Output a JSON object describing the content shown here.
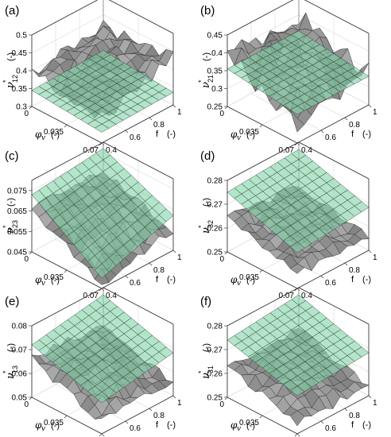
{
  "chart_data": [
    {
      "panel_label": "(a)",
      "type": "surface",
      "xlabel": {
        "var": "φ",
        "sub": "v",
        "unit": "(-)"
      },
      "ylabel": {
        "var": "f",
        "unit": "(-)"
      },
      "zlabel": {
        "var": "ν",
        "sup": "*",
        "sub": "12",
        "unit": "(-)"
      },
      "x_ticks": [
        "0",
        "0.035",
        "0.07"
      ],
      "y_ticks": [
        "0.4",
        "0.6",
        "0.8",
        "1"
      ],
      "z_ticks": [
        "0.3",
        "0.35",
        "0.4",
        "0.45",
        "0.5"
      ],
      "xlim": [
        0,
        0.07
      ],
      "ylim": [
        0.4,
        1
      ],
      "zlim": [
        0.3,
        0.5
      ],
      "series": [
        {
          "name": "",
          "kind": "gray-rough",
          "color": "#a0a0a0",
          "corners": {
            "x0y0": 0.395,
            "x0y1": 0.42,
            "x1y0": 0.37,
            "x1y1": 0.43
          },
          "center_bump": 0.02,
          "noise": 0.02,
          "seed": 11
        },
        {
          "name": "",
          "kind": "green-plane",
          "color": "#7fd4a6",
          "corners": {
            "x0y0": 0.345,
            "x0y1": 0.35,
            "x1y0": 0.33,
            "x1y1": 0.335
          },
          "center_bump": 0,
          "noise": 0,
          "seed": 0
        }
      ],
      "grid": true
    },
    {
      "panel_label": "(b)",
      "type": "surface",
      "xlabel": {
        "var": "φ",
        "sub": "v",
        "unit": "(-)"
      },
      "ylabel": {
        "var": "f",
        "unit": "(-)"
      },
      "zlabel": {
        "var": "ν",
        "sup": "*",
        "sub": "21",
        "unit": "(-)"
      },
      "x_ticks": [
        "0",
        "0.035",
        "0.07"
      ],
      "y_ticks": [
        "0.4",
        "0.6",
        "0.8",
        "1"
      ],
      "z_ticks": [
        "0.25",
        "0.3",
        "0.35",
        "0.4",
        "0.45"
      ],
      "xlim": [
        0,
        0.07
      ],
      "ylim": [
        0.4,
        1
      ],
      "zlim": [
        0.25,
        0.45
      ],
      "series": [
        {
          "name": "",
          "kind": "gray-rough",
          "color": "#a0a0a0",
          "corners": {
            "x0y0": 0.39,
            "x0y1": 0.4,
            "x1y0": 0.3,
            "x1y1": 0.34
          },
          "center_bump": 0.04,
          "noise": 0.03,
          "seed": 23
        },
        {
          "name": "",
          "kind": "green-plane",
          "color": "#7fd4a6",
          "corners": {
            "x0y0": 0.355,
            "x0y1": 0.355,
            "x1y0": 0.33,
            "x1y1": 0.33
          },
          "center_bump": 0,
          "noise": 0,
          "seed": 0
        }
      ],
      "grid": true
    },
    {
      "panel_label": "(c)",
      "type": "surface",
      "xlabel": {
        "var": "φ",
        "sub": "v",
        "unit": "(-)"
      },
      "ylabel": {
        "var": "f",
        "unit": "(-)"
      },
      "zlabel": {
        "var": "ν",
        "sup": "*",
        "sub": "23",
        "unit": "(-)"
      },
      "x_ticks": [
        "0",
        "0.035",
        "0.07"
      ],
      "y_ticks": [
        "0.4",
        "0.6",
        "0.8",
        "1"
      ],
      "z_ticks": [
        "0.045",
        "0.055",
        "0.065",
        "0.075"
      ],
      "xlim": [
        0,
        0.07
      ],
      "ylim": [
        0.4,
        1
      ],
      "zlim": [
        0.045,
        0.08
      ],
      "series": [
        {
          "name": "",
          "kind": "gray-rough",
          "color": "#a0a0a0",
          "corners": {
            "x0y0": 0.066,
            "x0y1": 0.066,
            "x1y0": 0.047,
            "x1y1": 0.055
          },
          "center_bump": 0.003,
          "noise": 0.0025,
          "seed": 37
        },
        {
          "name": "",
          "kind": "green-plane",
          "color": "#7fd4a6",
          "corners": {
            "x0y0": 0.073,
            "x0y1": 0.077,
            "x1y0": 0.05,
            "x1y1": 0.062
          },
          "center_bump": 0,
          "noise": 0,
          "seed": 0
        }
      ],
      "grid": true
    },
    {
      "panel_label": "(d)",
      "type": "surface",
      "xlabel": {
        "var": "φ",
        "sub": "v",
        "unit": "(-)"
      },
      "ylabel": {
        "var": "f",
        "unit": "(-)"
      },
      "zlabel": {
        "var": "ν",
        "sup": "*",
        "sub": "32",
        "unit": "(-)"
      },
      "x_ticks": [
        "0",
        "0.035",
        "0.07"
      ],
      "y_ticks": [
        "0.4",
        "0.6",
        "0.8",
        "1"
      ],
      "z_ticks": [
        "0.25",
        "0.26",
        "0.27",
        "0.28"
      ],
      "xlim": [
        0,
        0.07
      ],
      "ylim": [
        0.4,
        1
      ],
      "zlim": [
        0.25,
        0.28
      ],
      "series": [
        {
          "name": "",
          "kind": "gray-rough",
          "color": "#a0a0a0",
          "corners": {
            "x0y0": 0.264,
            "x0y1": 0.262,
            "x1y0": 0.256,
            "x1y1": 0.255
          },
          "center_bump": 0.003,
          "noise": 0.002,
          "seed": 41
        },
        {
          "name": "",
          "kind": "green-plane",
          "color": "#7fd4a6",
          "corners": {
            "x0y0": 0.275,
            "x0y1": 0.277,
            "x1y0": 0.265,
            "x1y1": 0.268
          },
          "center_bump": 0,
          "noise": 0,
          "seed": 0
        }
      ],
      "grid": true
    },
    {
      "panel_label": "(e)",
      "type": "surface",
      "xlabel": {
        "var": "φ",
        "sub": "v",
        "unit": "(-)"
      },
      "ylabel": {
        "var": "f",
        "unit": "(-)"
      },
      "zlabel": {
        "var": "ν",
        "sup": "*",
        "sub": "13",
        "unit": "(-)"
      },
      "x_ticks": [
        "0",
        "0.035",
        "0.07"
      ],
      "y_ticks": [
        "0.4",
        "0.6",
        "0.8",
        "1"
      ],
      "z_ticks": [
        "0.05",
        "0.06",
        "0.07",
        "0.08"
      ],
      "xlim": [
        0,
        0.07
      ],
      "ylim": [
        0.4,
        1
      ],
      "zlim": [
        0.05,
        0.08
      ],
      "series": [
        {
          "name": "",
          "kind": "gray-rough",
          "color": "#a0a0a0",
          "corners": {
            "x0y0": 0.066,
            "x0y1": 0.064,
            "x1y0": 0.055,
            "x1y1": 0.056
          },
          "center_bump": 0.003,
          "noise": 0.0025,
          "seed": 53
        },
        {
          "name": "",
          "kind": "green-plane",
          "color": "#7fd4a6",
          "corners": {
            "x0y0": 0.072,
            "x0y1": 0.077,
            "x1y0": 0.063,
            "x1y1": 0.068
          },
          "center_bump": 0,
          "noise": 0,
          "seed": 0
        }
      ],
      "grid": true
    },
    {
      "panel_label": "(f)",
      "type": "surface",
      "xlabel": {
        "var": "φ",
        "sub": "v",
        "unit": "(-)"
      },
      "ylabel": {
        "var": "f",
        "unit": "(-)"
      },
      "zlabel": {
        "var": "ν",
        "sup": "*",
        "sub": "31",
        "unit": "(-)"
      },
      "x_ticks": [
        "0",
        "0.035",
        "0.07"
      ],
      "y_ticks": [
        "0.4",
        "0.6",
        "0.8",
        "1"
      ],
      "z_ticks": [
        "0.25",
        "0.26",
        "0.27",
        "0.28"
      ],
      "xlim": [
        0,
        0.07
      ],
      "ylim": [
        0.4,
        1
      ],
      "zlim": [
        0.25,
        0.28
      ],
      "series": [
        {
          "name": "",
          "kind": "gray-rough",
          "color": "#a0a0a0",
          "corners": {
            "x0y0": 0.263,
            "x0y1": 0.262,
            "x1y0": 0.255,
            "x1y1": 0.254
          },
          "center_bump": 0.004,
          "noise": 0.002,
          "seed": 67
        },
        {
          "name": "",
          "kind": "green-plane",
          "color": "#7fd4a6",
          "corners": {
            "x0y0": 0.274,
            "x0y1": 0.277,
            "x1y0": 0.266,
            "x1y1": 0.268
          },
          "center_bump": 0,
          "noise": 0,
          "seed": 0
        }
      ],
      "grid": true
    }
  ]
}
